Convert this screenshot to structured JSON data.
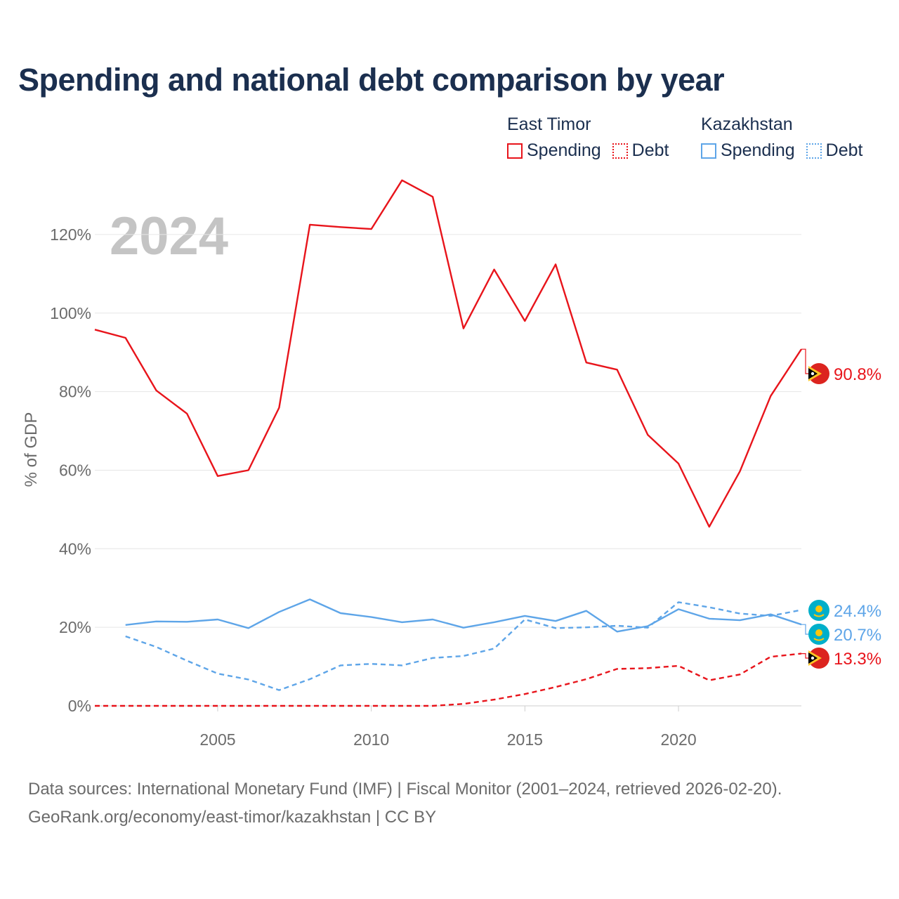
{
  "title": "Spending and national debt comparison by year",
  "colors": {
    "east_timor": "#e8141b",
    "kazakhstan": "#5ea5e8",
    "title": "#1b2f4f"
  },
  "legend": {
    "groups": [
      {
        "name": "East Timor",
        "items": [
          {
            "label": "Spending",
            "style": "solid"
          },
          {
            "label": "Debt",
            "style": "dotted"
          }
        ]
      },
      {
        "name": "Kazakhstan",
        "items": [
          {
            "label": "Spending",
            "style": "solid"
          },
          {
            "label": "Debt",
            "style": "dotted"
          }
        ]
      }
    ]
  },
  "sources": {
    "line1": "Data sources: International Monetary Fund (IMF) | Fiscal Monitor (2001–2024, retrieved 2026-02-20).",
    "line2": "GeoRank.org/economy/east-timor/kazakhstan | CC BY"
  },
  "chart_data": {
    "type": "line",
    "year_label": "2024",
    "ylabel": "% of GDP",
    "xlim": [
      2001,
      2024
    ],
    "ylim": [
      0,
      130
    ],
    "yticks": [
      0,
      20,
      40,
      60,
      80,
      100,
      120
    ],
    "ytick_labels": [
      "0%",
      "20%",
      "40%",
      "60%",
      "80%",
      "100%",
      "120%"
    ],
    "xticks": [
      2005,
      2010,
      2015,
      2020
    ],
    "xtick_labels": [
      "2005",
      "2010",
      "2015",
      "2020"
    ],
    "grid": true,
    "series": [
      {
        "name": "East Timor Spending",
        "country": "east_timor",
        "dash": "solid",
        "end_label": "90.8%",
        "x": [
          2001,
          2002,
          2003,
          2004,
          2005,
          2006,
          2007,
          2008,
          2009,
          2010,
          2011,
          2012,
          2013,
          2014,
          2015,
          2016,
          2017,
          2018,
          2019,
          2020,
          2021,
          2022,
          2023,
          2024
        ],
        "values": [
          95.8,
          93.7,
          80.3,
          74.4,
          58.5,
          60.0,
          75.9,
          122.5,
          121.9,
          121.4,
          133.8,
          129.6,
          96.1,
          111.1,
          98.0,
          112.4,
          87.4,
          85.6,
          69.0,
          61.7,
          45.6,
          59.7,
          78.9,
          90.8
        ]
      },
      {
        "name": "East Timor Debt",
        "country": "east_timor",
        "dash": "dashed",
        "end_label": "13.3%",
        "x": [
          2001,
          2002,
          2003,
          2004,
          2005,
          2006,
          2007,
          2008,
          2009,
          2010,
          2011,
          2012,
          2013,
          2014,
          2015,
          2016,
          2017,
          2018,
          2019,
          2020,
          2021,
          2022,
          2023,
          2024
        ],
        "values": [
          0,
          0,
          0,
          0,
          0,
          0,
          0,
          0,
          0,
          0,
          0,
          0,
          0.5,
          1.6,
          3.0,
          4.8,
          6.8,
          9.4,
          9.6,
          10.2,
          6.5,
          8.0,
          12.5,
          13.3
        ]
      },
      {
        "name": "Kazakhstan Spending",
        "country": "kazakhstan",
        "dash": "solid",
        "end_label": "20.7%",
        "x": [
          2002,
          2003,
          2004,
          2005,
          2006,
          2007,
          2008,
          2009,
          2010,
          2011,
          2012,
          2013,
          2014,
          2015,
          2016,
          2017,
          2018,
          2019,
          2020,
          2021,
          2022,
          2023,
          2024
        ],
        "values": [
          20.6,
          21.5,
          21.4,
          22.0,
          19.8,
          23.9,
          27.1,
          23.6,
          22.6,
          21.3,
          22.0,
          19.9,
          21.3,
          22.9,
          21.6,
          24.2,
          18.9,
          20.3,
          24.6,
          22.2,
          21.8,
          23.3,
          20.7
        ]
      },
      {
        "name": "Kazakhstan Debt",
        "country": "kazakhstan",
        "dash": "dashed",
        "end_label": "24.4%",
        "x": [
          2002,
          2003,
          2004,
          2005,
          2006,
          2007,
          2008,
          2009,
          2010,
          2011,
          2012,
          2013,
          2014,
          2015,
          2016,
          2017,
          2018,
          2019,
          2020,
          2021,
          2022,
          2023,
          2024
        ],
        "values": [
          17.7,
          15.0,
          11.5,
          8.2,
          6.7,
          4.0,
          6.8,
          10.3,
          10.7,
          10.3,
          12.2,
          12.7,
          14.6,
          22.0,
          19.8,
          20.0,
          20.4,
          19.9,
          26.4,
          25.1,
          23.5,
          22.9,
          24.4
        ]
      }
    ]
  }
}
